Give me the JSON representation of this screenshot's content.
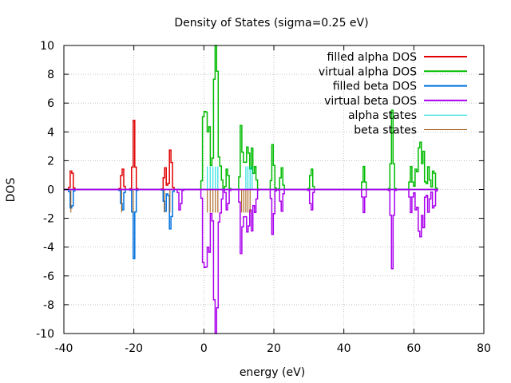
{
  "chart_data": {
    "type": "line",
    "title": "Density of States (sigma=0.25 eV)",
    "xlabel": "energy (eV)",
    "ylabel": "DOS",
    "xlim": [
      -40,
      80
    ],
    "ylim": [
      -10,
      10
    ],
    "xticks": [
      -40,
      -20,
      0,
      20,
      40,
      60,
      80
    ],
    "yticks": [
      -10,
      -8,
      -6,
      -4,
      -2,
      0,
      2,
      4,
      6,
      8,
      10
    ],
    "xtick_labels": [
      "-40",
      "-20",
      "0",
      "20",
      "40",
      "60",
      "80"
    ],
    "ytick_labels": [
      "-10",
      "-8",
      "-6",
      "-4",
      "-2",
      "0",
      "2",
      "4",
      "6",
      "8",
      "10"
    ],
    "grid": true,
    "legend_position": "top-right",
    "sigma_ev": 0.25,
    "series": [
      {
        "name": "filled alpha DOS",
        "color": "#e00000",
        "sign": 1,
        "peaks": [
          [
            -38,
            1.6
          ],
          [
            -23.5,
            1.6
          ],
          [
            -20.2,
            4.8
          ],
          [
            -11.3,
            1.6
          ],
          [
            -9.7,
            3.1
          ]
        ]
      },
      {
        "name": "virtual alpha DOS",
        "color": "#00bb00",
        "sign": 1,
        "peaks": [
          [
            -0.2,
            6.3
          ],
          [
            0.6,
            5.2
          ],
          [
            1.4,
            4.2
          ],
          [
            2.4,
            1.6
          ],
          [
            3.0,
            9.5
          ],
          [
            3.6,
            7.4
          ],
          [
            4.6,
            1.6
          ],
          [
            6.5,
            1.6
          ],
          [
            10.5,
            4.7
          ],
          [
            11.5,
            2.2
          ],
          [
            12.4,
            3.5
          ],
          [
            13.5,
            2.9
          ],
          [
            14.5,
            1.6
          ],
          [
            19.5,
            3.3
          ],
          [
            22,
            1.6
          ],
          [
            30.5,
            1.6
          ],
          [
            45.5,
            1.6
          ],
          [
            53.6,
            5.5
          ],
          [
            59,
            1.6
          ],
          [
            60.5,
            1.6
          ],
          [
            61.5,
            4.0
          ],
          [
            62.5,
            2.8
          ],
          [
            64,
            1.6
          ],
          [
            65.5,
            1.6
          ]
        ]
      },
      {
        "name": "filled beta DOS",
        "color": "#0072e0",
        "sign": -1,
        "peaks": [
          [
            -38,
            1.6
          ],
          [
            -23.5,
            1.6
          ],
          [
            -20.2,
            4.8
          ],
          [
            -11.3,
            1.6
          ],
          [
            -9.7,
            3.1
          ]
        ]
      },
      {
        "name": "virtual beta DOS",
        "color": "#aa00ee",
        "sign": -1,
        "peaks": [
          [
            -7,
            1.6
          ],
          [
            -0.2,
            6.3
          ],
          [
            0.6,
            5.2
          ],
          [
            1.4,
            4.2
          ],
          [
            2.4,
            1.6
          ],
          [
            3.0,
            9.5
          ],
          [
            3.6,
            7.4
          ],
          [
            4.6,
            1.6
          ],
          [
            6.5,
            1.6
          ],
          [
            10.5,
            4.7
          ],
          [
            11.5,
            2.2
          ],
          [
            12.4,
            3.5
          ],
          [
            13.5,
            2.9
          ],
          [
            14.5,
            1.6
          ],
          [
            19.5,
            3.3
          ],
          [
            22,
            1.6
          ],
          [
            30.5,
            1.6
          ],
          [
            45.5,
            1.6
          ],
          [
            53.6,
            5.5
          ],
          [
            59,
            1.6
          ],
          [
            60.5,
            1.6
          ],
          [
            61.5,
            4.0
          ],
          [
            62.5,
            2.8
          ],
          [
            64,
            1.6
          ],
          [
            65.5,
            1.6
          ]
        ]
      },
      {
        "name": "alpha states",
        "color": "#00d8d8",
        "type": "sticks",
        "sign": 1,
        "height": 1.6,
        "x": [
          1.0,
          1.8,
          2.6,
          3.3,
          4.0,
          12.0,
          12.6,
          13.2,
          13.8
        ]
      },
      {
        "name": "beta states",
        "color": "#a05000",
        "type": "sticks",
        "sign": -1,
        "height": 1.6,
        "x": [
          -38,
          -23.5,
          -20.2,
          -11.3,
          -9.7,
          1.0,
          1.8,
          2.6,
          3.3,
          4.0,
          10.8,
          11.4,
          12.0,
          12.6,
          13.2
        ]
      }
    ],
    "zero_line_color": "#aa00ee",
    "x_data_range": [
      -40,
      67
    ]
  }
}
